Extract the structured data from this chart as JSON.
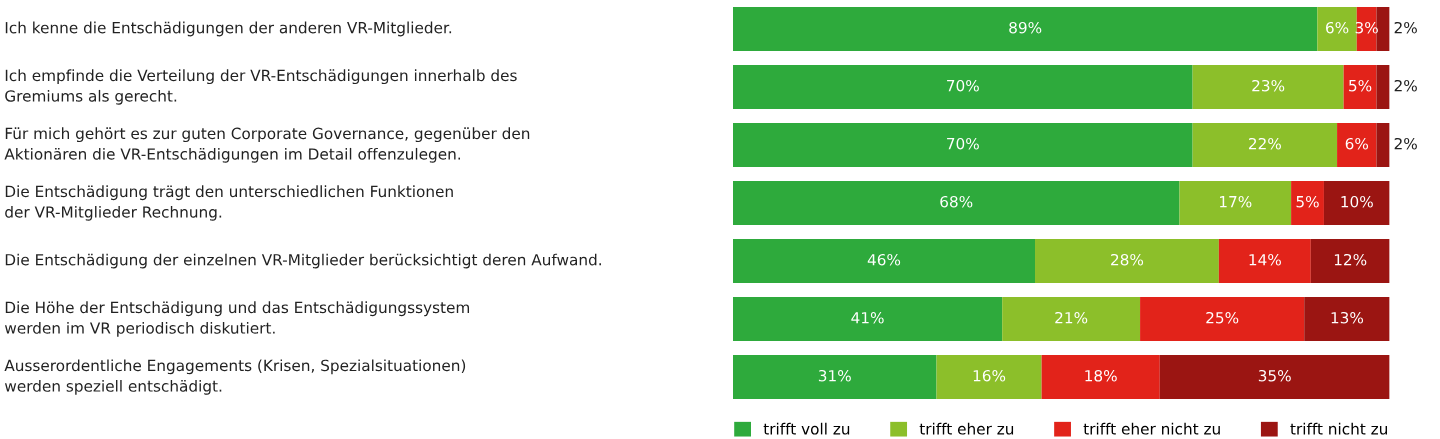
{
  "chart_data": {
    "type": "bar",
    "orientation": "horizontal",
    "stacked": true,
    "legend": "bottom",
    "tick_labels": false,
    "categories": [
      "Ich kenne die Entschädigungen der anderen VR-Mitglieder.",
      "Ich empfinde die Verteilung der VR-Entschädigungen innerhalb des\nGremiums als gerecht.",
      "Für mich gehört es zur guten Corporate Governance, gegenüber den\nAktionären die VR-Entschädigungen im Detail offenzulegen.",
      "Die Entschädigung trägt den unterschiedlichen Funktionen\nder VR-Mitglieder Rechnung.",
      "Die Entschädigung der einzelnen VR-Mitglieder berücksichtigt deren Aufwand.",
      "Die Höhe der Entschädigung und das Entschädigungssystem\nwerden im VR periodisch diskutiert.",
      "Ausserordentliche Engagements (Krisen, Spezialsituationen)\nwerden speziell entschädigt."
    ],
    "series": [
      {
        "name": "trifft voll zu",
        "color": "#2eaa3c",
        "values": [
          89,
          70,
          70,
          68,
          46,
          41,
          31
        ],
        "value_labels": [
          "89%",
          "70%",
          "70%",
          "68%",
          "46%",
          "41%",
          "31%"
        ]
      },
      {
        "name": "trifft eher zu",
        "color": "#8cbf2a",
        "values": [
          6,
          23,
          22,
          17,
          28,
          21,
          16
        ],
        "value_labels": [
          "6%",
          "23%",
          "22%",
          "17%",
          "28%",
          "21%",
          "16%"
        ]
      },
      {
        "name": "trifft eher nicht zu",
        "color": "#e2231a",
        "values": [
          3,
          5,
          6,
          5,
          14,
          25,
          18
        ],
        "value_labels": [
          "3%",
          "5%",
          "6%",
          "5%",
          "14%",
          "25%",
          "18%"
        ]
      },
      {
        "name": "trifft nicht zu",
        "color": "#9b1512",
        "values": [
          2,
          2,
          2,
          10,
          12,
          13,
          35
        ],
        "value_labels": [
          "2%",
          "2%",
          "2%",
          "10%",
          "12%",
          "13%",
          "35%"
        ]
      }
    ]
  }
}
